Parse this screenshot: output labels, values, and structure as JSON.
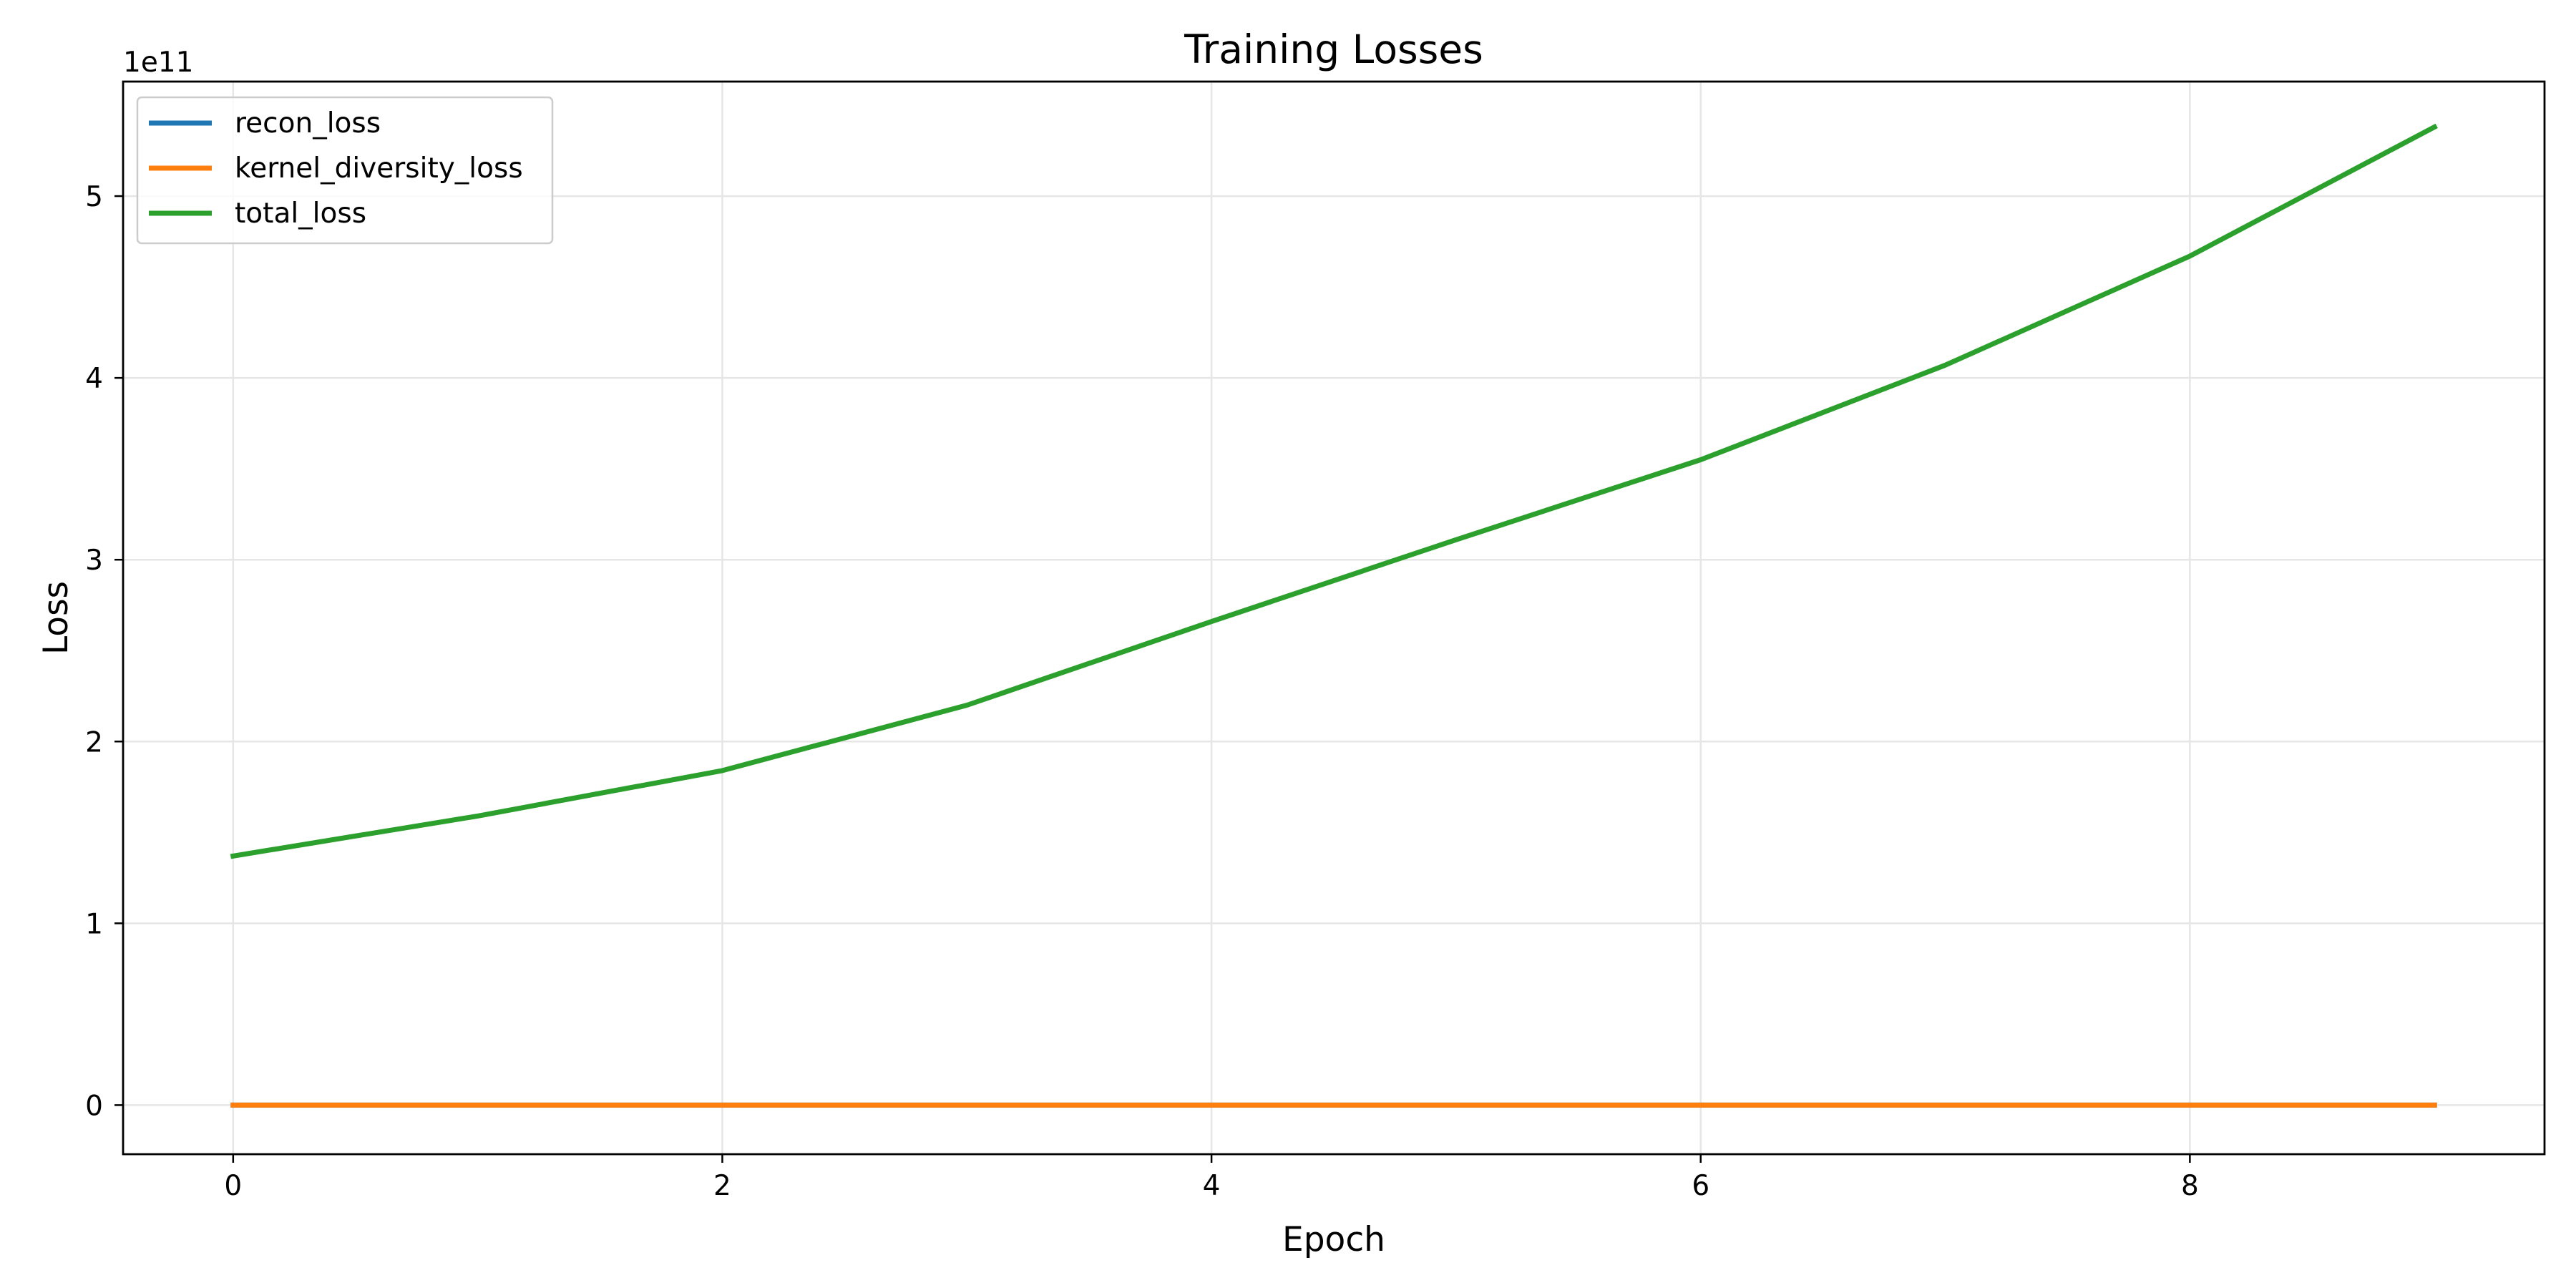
{
  "chart_data": {
    "type": "line",
    "title": "Training Losses",
    "xlabel": "Epoch",
    "ylabel": "Loss",
    "y_offset_text": "1e11",
    "y_scale": 100000000000,
    "x": [
      0,
      1,
      2,
      3,
      4,
      5,
      6,
      7,
      8,
      9
    ],
    "xlim": [
      -0.45,
      9.45
    ],
    "ylim": [
      -0.27,
      5.63
    ],
    "x_ticks": [
      0,
      2,
      4,
      6,
      8
    ],
    "x_tick_labels": [
      "0",
      "2",
      "4",
      "6",
      "8"
    ],
    "y_ticks": [
      0,
      1,
      2,
      3,
      4,
      5
    ],
    "y_tick_labels": [
      "0",
      "1",
      "2",
      "3",
      "4",
      "5"
    ],
    "grid": true,
    "legend_position": "top-left",
    "series": [
      {
        "name": "recon_loss",
        "color": "#1f77b4",
        "values": [
          0,
          0,
          0,
          0,
          0,
          0,
          0,
          0,
          0,
          0
        ]
      },
      {
        "name": "kernel_diversity_loss",
        "color": "#ff7f0e",
        "values": [
          0,
          0,
          0,
          0,
          0,
          0,
          0,
          0,
          0,
          0
        ]
      },
      {
        "name": "total_loss",
        "color": "#2ca02c",
        "values": [
          1.37,
          1.59,
          1.84,
          2.2,
          2.66,
          3.11,
          3.55,
          4.07,
          4.67,
          5.38
        ]
      }
    ]
  }
}
